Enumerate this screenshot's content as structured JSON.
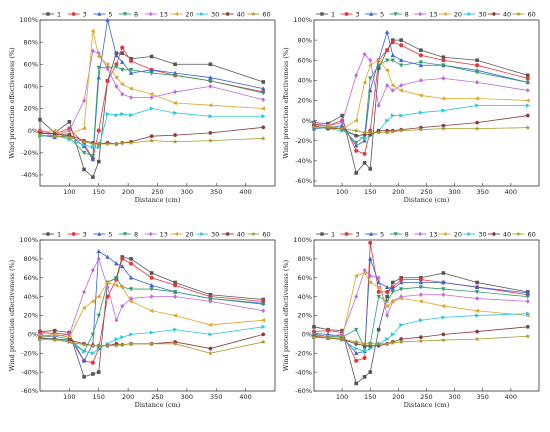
{
  "series_names": [
    "1",
    "3",
    "5",
    "8",
    "13",
    "20",
    "30",
    "40",
    "60"
  ],
  "series_colors": [
    "#555555",
    "#e8333a",
    "#3a63d6",
    "#2e9e6a",
    "#c06bdc",
    "#e0a52a",
    "#22c9dc",
    "#8b3a3a",
    "#a89a2a"
  ],
  "series_markers": [
    "square",
    "circle",
    "triangle-up",
    "triangle-down",
    "diamond",
    "triangle-left",
    "triangle-right",
    "hexagon",
    "star"
  ],
  "chart_data": [
    {
      "type": "line",
      "xlabel": "Distance (cm)",
      "ylabel": "Wind protection effectiveness (%)",
      "xlim": [
        50,
        450
      ],
      "ylim": [
        -50,
        100
      ],
      "xticks": [
        100,
        150,
        200,
        250,
        300,
        350,
        400
      ],
      "yticks": [
        -40,
        -20,
        0,
        20,
        40,
        60,
        80,
        100
      ],
      "x": [
        50,
        75,
        100,
        125,
        140,
        150,
        165,
        180,
        190,
        205,
        240,
        280,
        340,
        430
      ],
      "series": [
        {
          "name": "1",
          "values": [
            10,
            -2,
            8,
            -35,
            -42,
            -28,
            45,
            70,
            70,
            65,
            67,
            60,
            60,
            44
          ]
        },
        {
          "name": "3",
          "values": [
            0,
            -3,
            2,
            -12,
            -25,
            0,
            45,
            60,
            75,
            63,
            55,
            50,
            45,
            35
          ]
        },
        {
          "name": "5",
          "values": [
            -4,
            -6,
            -4,
            -14,
            -26,
            48,
            100,
            68,
            62,
            52,
            55,
            52,
            48,
            38
          ]
        },
        {
          "name": "8",
          "values": [
            -3,
            -2,
            -6,
            -20,
            -23,
            57,
            57,
            58,
            55,
            55,
            52,
            50,
            45,
            34
          ]
        },
        {
          "name": "13",
          "values": [
            -1,
            -5,
            0,
            27,
            72,
            70,
            56,
            40,
            33,
            30,
            30,
            35,
            40,
            28
          ]
        },
        {
          "name": "20",
          "values": [
            -1,
            0,
            -3,
            2,
            90,
            67,
            60,
            48,
            42,
            38,
            33,
            25,
            23,
            20
          ]
        },
        {
          "name": "30",
          "values": [
            -5,
            -4,
            -8,
            -13,
            -15,
            -15,
            15,
            14,
            15,
            14,
            20,
            16,
            13,
            13
          ]
        },
        {
          "name": "40",
          "values": [
            -2,
            -3,
            -4,
            -9,
            -11,
            -12,
            -11,
            -12,
            -11,
            -10,
            -5,
            -4,
            -2,
            3
          ]
        },
        {
          "name": "60",
          "values": [
            -4,
            -5,
            -6,
            -10,
            -12,
            -12,
            -12,
            -12,
            -11,
            -11,
            -9,
            -10,
            -9,
            -7
          ]
        }
      ]
    },
    {
      "type": "line",
      "xlabel": "Distance (cm)",
      "ylabel": "Wind protection effectiveness (%)",
      "xlim": [
        50,
        450
      ],
      "ylim": [
        -65,
        100
      ],
      "xticks": [
        100,
        150,
        200,
        250,
        300,
        350,
        400
      ],
      "yticks": [
        -60,
        -40,
        -20,
        0,
        20,
        40,
        60,
        80,
        100
      ],
      "x": [
        50,
        75,
        100,
        125,
        140,
        150,
        165,
        180,
        190,
        205,
        240,
        280,
        340,
        430
      ],
      "series": [
        {
          "name": "1",
          "values": [
            -2,
            -3,
            5,
            -52,
            -42,
            -48,
            52,
            70,
            80,
            80,
            70,
            63,
            60,
            45
          ]
        },
        {
          "name": "3",
          "values": [
            -4,
            -5,
            0,
            -30,
            -33,
            -10,
            60,
            70,
            78,
            75,
            65,
            60,
            55,
            42
          ]
        },
        {
          "name": "5",
          "values": [
            -8,
            -7,
            -5,
            -25,
            -20,
            30,
            60,
            88,
            65,
            60,
            55,
            55,
            50,
            38
          ]
        },
        {
          "name": "8",
          "values": [
            -7,
            -6,
            -8,
            -22,
            -15,
            42,
            55,
            60,
            60,
            55,
            58,
            55,
            48,
            38
          ]
        },
        {
          "name": "13",
          "values": [
            -3,
            -5,
            -2,
            45,
            66,
            60,
            15,
            35,
            30,
            35,
            40,
            42,
            38,
            30
          ]
        },
        {
          "name": "20",
          "values": [
            -5,
            -5,
            -8,
            0,
            38,
            55,
            60,
            50,
            35,
            30,
            25,
            22,
            22,
            20
          ]
        },
        {
          "name": "30",
          "values": [
            -6,
            -8,
            -10,
            -15,
            -18,
            -15,
            -10,
            0,
            5,
            5,
            8,
            10,
            15,
            15
          ]
        },
        {
          "name": "40",
          "values": [
            -5,
            -8,
            -8,
            -15,
            -14,
            -14,
            -10,
            -10,
            -10,
            -9,
            -7,
            -5,
            -2,
            5
          ]
        },
        {
          "name": "60",
          "values": [
            -6,
            -7,
            -8,
            -10,
            -12,
            -12,
            -12,
            -12,
            -11,
            -10,
            -9,
            -8,
            -8,
            -7
          ]
        }
      ]
    },
    {
      "type": "line",
      "xlabel": "Distance (cm)",
      "ylabel": "Wind protection effectiveness (%)",
      "xlim": [
        50,
        450
      ],
      "ylim": [
        -60,
        100
      ],
      "xticks": [
        100,
        150,
        200,
        250,
        300,
        350,
        400
      ],
      "yticks": [
        -60,
        -40,
        -20,
        0,
        20,
        40,
        60,
        80,
        100
      ],
      "x": [
        50,
        75,
        100,
        125,
        140,
        150,
        165,
        180,
        190,
        205,
        240,
        280,
        340,
        430
      ],
      "series": [
        {
          "name": "1",
          "values": [
            3,
            4,
            2,
            -45,
            -42,
            -40,
            55,
            60,
            82,
            80,
            65,
            55,
            42,
            37
          ]
        },
        {
          "name": "3",
          "values": [
            2,
            1,
            0,
            -28,
            -30,
            -15,
            40,
            58,
            80,
            75,
            60,
            52,
            40,
            35
          ]
        },
        {
          "name": "5",
          "values": [
            -2,
            0,
            -3,
            -28,
            -10,
            88,
            82,
            75,
            72,
            60,
            52,
            45,
            38,
            33
          ]
        },
        {
          "name": "8",
          "values": [
            -3,
            -2,
            -5,
            -18,
            0,
            20,
            55,
            60,
            50,
            48,
            48,
            45,
            38,
            32
          ]
        },
        {
          "name": "13",
          "values": [
            -1,
            -2,
            0,
            45,
            68,
            80,
            50,
            15,
            30,
            38,
            40,
            40,
            35,
            25
          ]
        },
        {
          "name": "20",
          "values": [
            -2,
            0,
            -3,
            28,
            35,
            40,
            55,
            52,
            50,
            35,
            25,
            20,
            10,
            15
          ]
        },
        {
          "name": "30",
          "values": [
            -5,
            -4,
            -8,
            -18,
            -20,
            -15,
            -10,
            -5,
            -3,
            0,
            2,
            5,
            0,
            8
          ]
        },
        {
          "name": "40",
          "values": [
            -4,
            -5,
            -6,
            -10,
            -12,
            -12,
            -12,
            -10,
            -11,
            -10,
            -10,
            -8,
            -15,
            0
          ]
        },
        {
          "name": "60",
          "values": [
            -5,
            -6,
            -8,
            -11,
            -12,
            -12,
            -12,
            -12,
            -11,
            -10,
            -10,
            -10,
            -20,
            -8
          ]
        }
      ]
    },
    {
      "type": "line",
      "xlabel": "Distance (cm)",
      "ylabel": "Wind protection effectiveness (%)",
      "xlim": [
        50,
        450
      ],
      "ylim": [
        -60,
        100
      ],
      "xticks": [
        100,
        150,
        200,
        250,
        300,
        350,
        400
      ],
      "yticks": [
        -60,
        -40,
        -20,
        0,
        20,
        40,
        60,
        80,
        100
      ],
      "x": [
        50,
        75,
        100,
        125,
        140,
        150,
        165,
        180,
        190,
        205,
        240,
        280,
        340,
        430
      ],
      "series": [
        {
          "name": "1",
          "values": [
            8,
            5,
            4,
            -52,
            -45,
            -40,
            5,
            40,
            55,
            60,
            60,
            65,
            55,
            45
          ]
        },
        {
          "name": "3",
          "values": [
            3,
            4,
            2,
            -28,
            -25,
            97,
            45,
            45,
            50,
            58,
            58,
            55,
            50,
            42
          ]
        },
        {
          "name": "5",
          "values": [
            1,
            0,
            -2,
            -20,
            -18,
            80,
            55,
            50,
            48,
            55,
            55,
            55,
            50,
            44
          ]
        },
        {
          "name": "8",
          "values": [
            0,
            -2,
            -3,
            5,
            -15,
            -10,
            40,
            35,
            45,
            48,
            50,
            48,
            45,
            40
          ]
        },
        {
          "name": "13",
          "values": [
            -1,
            -2,
            0,
            40,
            68,
            62,
            60,
            20,
            35,
            40,
            42,
            42,
            38,
            35
          ]
        },
        {
          "name": "20",
          "values": [
            -2,
            -3,
            -4,
            62,
            65,
            55,
            50,
            30,
            35,
            38,
            35,
            30,
            25,
            20
          ]
        },
        {
          "name": "30",
          "values": [
            -3,
            -4,
            -6,
            -15,
            -18,
            -15,
            -10,
            -5,
            0,
            10,
            15,
            18,
            20,
            22
          ]
        },
        {
          "name": "40",
          "values": [
            -2,
            -4,
            -5,
            -10,
            -12,
            -12,
            -12,
            -10,
            -8,
            -5,
            -3,
            0,
            3,
            8
          ]
        },
        {
          "name": "60",
          "values": [
            -3,
            -4,
            -5,
            -8,
            -10,
            -10,
            -10,
            -10,
            -9,
            -8,
            -7,
            -6,
            -5,
            -2
          ]
        }
      ]
    }
  ]
}
